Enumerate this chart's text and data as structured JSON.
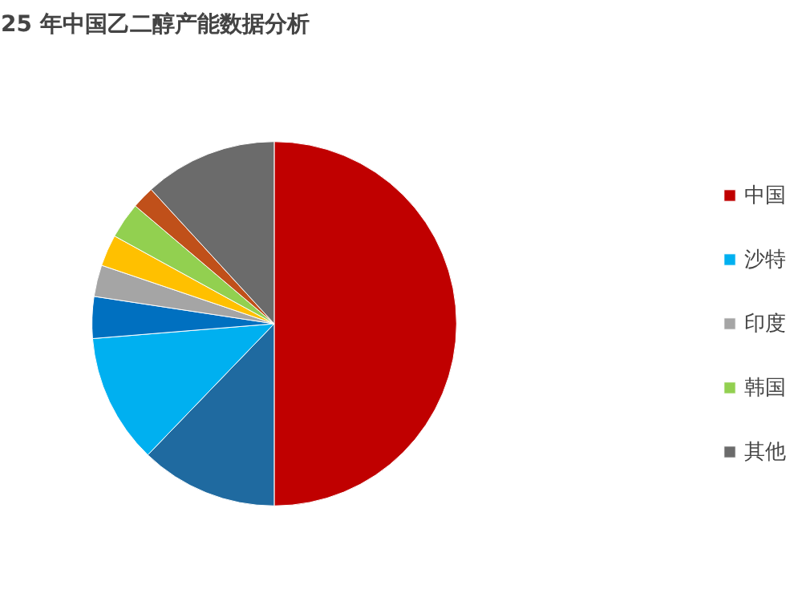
{
  "chart_data": {
    "type": "pie",
    "title": "25 年中国乙二醇产能数据分析",
    "categories": [
      "中国",
      null,
      "沙特",
      null,
      "印度",
      null,
      "韩国",
      null,
      "其他"
    ],
    "values": [
      50,
      12.2,
      11.5,
      3.7,
      2.8,
      2.8,
      3.2,
      2,
      11.8
    ],
    "colors": [
      "#c00000",
      "#1f6aa0",
      "#00b0f0",
      "#0070c0",
      "#a5a5a5",
      "#ffc000",
      "#92d050",
      "#c0501a",
      "#6b6b6b"
    ],
    "legend": "right"
  }
}
